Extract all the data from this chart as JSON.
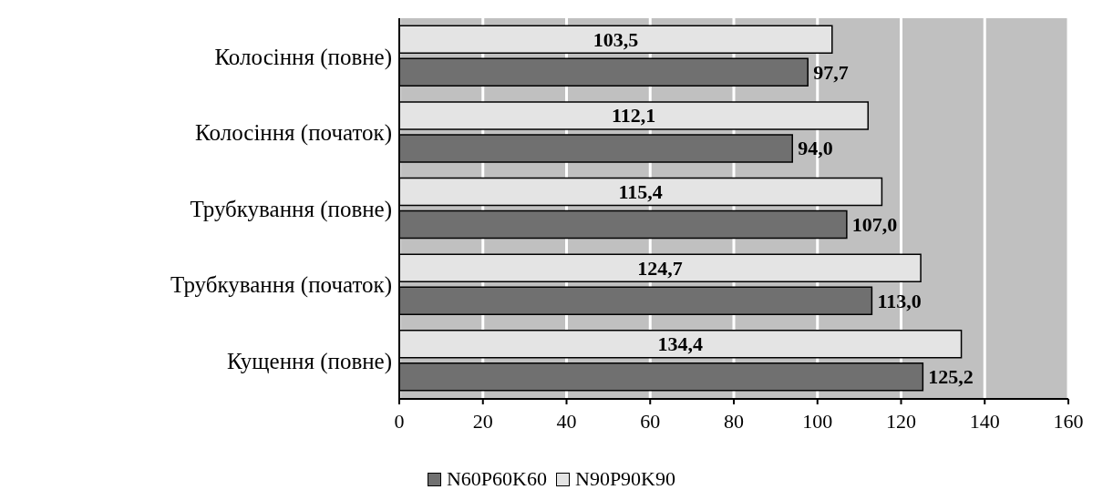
{
  "chart_data": {
    "type": "bar",
    "orientation": "horizontal",
    "categories": [
      "Колосіння (повне)",
      "Колосіння (початок)",
      "Трубкування (повне)",
      "Трубкування (початок)",
      "Кущення (повне)"
    ],
    "series": [
      {
        "name": "N60P60K60",
        "color": "#707070",
        "values": [
          97.7,
          94.0,
          107.0,
          113.0,
          125.2
        ],
        "value_labels": [
          "97,7",
          "94,0",
          "107,0",
          "113,0",
          "125,2"
        ]
      },
      {
        "name": "N90P90K90",
        "color": "#e4e4e4",
        "values": [
          103.5,
          112.1,
          115.4,
          124.7,
          134.4
        ],
        "value_labels": [
          "103,5",
          "112,1",
          "115,4",
          "124,7",
          "134,4"
        ]
      }
    ],
    "xlim": [
      0,
      160
    ],
    "xticks": [
      0,
      20,
      40,
      60,
      80,
      100,
      120,
      140,
      160
    ],
    "grid": "x",
    "legend": "bottom"
  }
}
